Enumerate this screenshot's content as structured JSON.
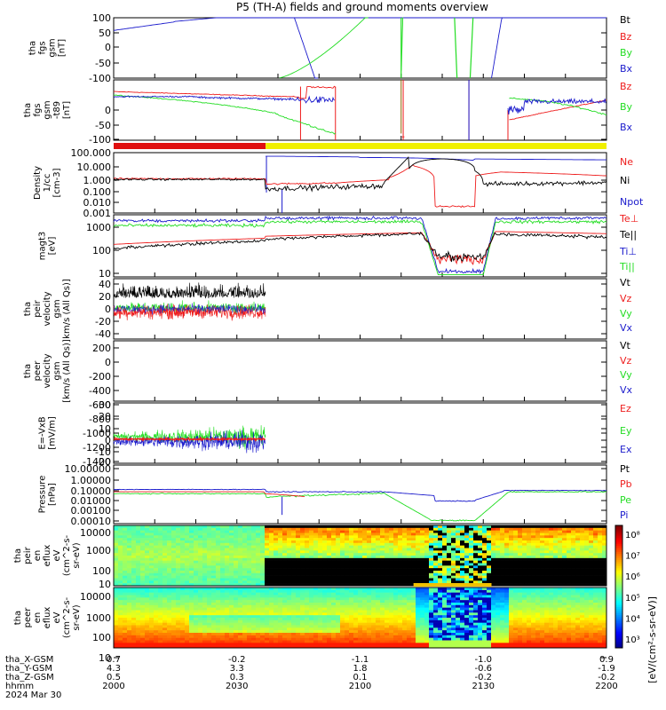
{
  "title": "P5 (TH-A) fields and ground moments overview",
  "colors": {
    "black": "#000000",
    "red": "#ee1c1c",
    "green": "#22dd22",
    "blue": "#1a1acc",
    "yellow": "#f0f000"
  },
  "chart_data": [
    {
      "id": "fgs",
      "type": "line",
      "ylabel": [
        "tha",
        "fgs",
        "gsm",
        "[nT]"
      ],
      "ylim": [
        -100,
        100
      ],
      "ticks": [
        "100",
        "50",
        "0",
        "-50",
        "-100"
      ],
      "series": [
        {
          "name": "Bt",
          "color": "#000000"
        },
        {
          "name": "Bz",
          "color": "#ee1c1c"
        },
        {
          "name": "By",
          "color": "#22dd22"
        },
        {
          "name": "Bx",
          "color": "#1a1acc"
        }
      ]
    },
    {
      "id": "fgs_t89",
      "type": "line",
      "ylabel": [
        "tha",
        "fgs",
        "gsm",
        "-t89",
        "[nT]"
      ],
      "ylim": [
        -130,
        50
      ],
      "ticks": [
        "0",
        "-50",
        "-100"
      ],
      "series": [
        {
          "name": "Bz",
          "color": "#ee1c1c"
        },
        {
          "name": "By",
          "color": "#22dd22"
        },
        {
          "name": "Bx",
          "color": "#1a1acc"
        }
      ]
    },
    {
      "id": "density",
      "type": "line",
      "ylabel": [
        "Density",
        "1/cc",
        "[cm-3]"
      ],
      "log": true,
      "ylim": [
        0.001,
        100
      ],
      "ticks": [
        "100.000",
        "10.000",
        "1.000",
        "0.100",
        "0.010",
        "0.001"
      ],
      "series": [
        {
          "name": "Ne",
          "color": "#ee1c1c"
        },
        {
          "name": "Ni",
          "color": "#000000"
        },
        {
          "name": "Npot",
          "color": "#1a1acc"
        }
      ]
    },
    {
      "id": "temp",
      "type": "line",
      "ylabel": [
        "magt3",
        "[eV]"
      ],
      "log": true,
      "ylim": [
        10,
        2000
      ],
      "ticks": [
        "1000",
        "100",
        "10"
      ],
      "series": [
        {
          "name": "Te⊥",
          "color": "#ee1c1c"
        },
        {
          "name": "Te||",
          "color": "#000000"
        },
        {
          "name": "Ti⊥",
          "color": "#1a1acc"
        },
        {
          "name": "Ti||",
          "color": "#22dd22"
        }
      ]
    },
    {
      "id": "peir_vel",
      "type": "line",
      "ylabel": [
        "tha",
        "peir",
        "velocity",
        "gsm",
        "km/s (All Qs)]"
      ],
      "ylim": [
        -50,
        50
      ],
      "ticks": [
        "40",
        "20",
        "0",
        "-20",
        "-40"
      ],
      "series": [
        {
          "name": "Vt",
          "color": "#000000"
        },
        {
          "name": "Vz",
          "color": "#ee1c1c"
        },
        {
          "name": "Vy",
          "color": "#22dd22"
        },
        {
          "name": "Vx",
          "color": "#1a1acc"
        }
      ]
    },
    {
      "id": "peer_vel",
      "type": "line",
      "ylabel": [
        "tha",
        "peer",
        "velocity",
        "gsm",
        "[km/s (All Qs)]"
      ],
      "ylim": [
        -1450,
        200
      ],
      "ticks": [
        "200",
        "0",
        "-200",
        "-400",
        "-600",
        "-800",
        "-1000",
        "-1200",
        "-1400"
      ],
      "series": [
        {
          "name": "Vt",
          "color": "#000000"
        },
        {
          "name": "Vz",
          "color": "#ee1c1c"
        },
        {
          "name": "Vy",
          "color": "#22dd22"
        },
        {
          "name": "Vx",
          "color": "#1a1acc"
        }
      ]
    },
    {
      "id": "efield",
      "type": "line",
      "ylabel": [
        "E=-VxB",
        "[mV/m]"
      ],
      "ylim": [
        -20,
        30
      ],
      "ticks": [
        "30",
        "20",
        "10",
        "0",
        "-10",
        "-20"
      ],
      "series": [
        {
          "name": "Ez",
          "color": "#ee1c1c"
        },
        {
          "name": "Ey",
          "color": "#22dd22"
        },
        {
          "name": "Ex",
          "color": "#1a1acc"
        }
      ]
    },
    {
      "id": "pressure",
      "type": "line",
      "ylabel": [
        "Pressure",
        "[nPa]"
      ],
      "log": true,
      "ylim": [
        3e-05,
        10
      ],
      "ticks": [
        "10.00000",
        "1.00000",
        "0.10000",
        "0.01000",
        "0.00100",
        "0.00010"
      ],
      "series": [
        {
          "name": "Pt",
          "color": "#000000"
        },
        {
          "name": "Pb",
          "color": "#ee1c1c"
        },
        {
          "name": "Pe",
          "color": "#22dd22"
        },
        {
          "name": "Pi",
          "color": "#1a1acc"
        }
      ]
    },
    {
      "id": "peir_en",
      "type": "heatmap",
      "ylabel": [
        "tha",
        "peir",
        "en",
        "eflux",
        "eV",
        "(cm^2-s-",
        "sr-eV)"
      ],
      "ylim": [
        5,
        30000
      ],
      "ticks": [
        "10000",
        "1000",
        "100",
        "10"
      ]
    },
    {
      "id": "peer_en",
      "type": "heatmap",
      "ylabel": [
        "tha",
        "peer",
        "en",
        "eflux",
        "eV",
        "(cm^2-s-",
        "sr-eV)"
      ],
      "ylim": [
        5,
        30000
      ],
      "ticks": [
        "10000",
        "1000",
        "100",
        "10"
      ]
    }
  ],
  "colorbar": {
    "label": "[eV/(cm²-s-sr-eV)]",
    "ticks": [
      "10⁸",
      "10⁷",
      "10⁶",
      "10⁵",
      "10⁴",
      "10³"
    ]
  },
  "xaxis": {
    "rows": [
      {
        "label": "tha_X-GSM",
        "values": [
          "0.7",
          "-0.2",
          "-1.1",
          "-1.0",
          "0.9"
        ]
      },
      {
        "label": "tha_Y-GSM",
        "values": [
          "4.3",
          "3.3",
          "1.8",
          "-0.6",
          "-1.9"
        ]
      },
      {
        "label": "tha_Z-GSM",
        "values": [
          "0.5",
          "0.3",
          "0.1",
          "-0.2",
          "-0.2"
        ]
      },
      {
        "label": "hhmm",
        "values": [
          "2000",
          "2030",
          "2100",
          "2130",
          "2200"
        ]
      }
    ],
    "date": "2024 Mar 30",
    "range": [
      0,
      120
    ]
  }
}
